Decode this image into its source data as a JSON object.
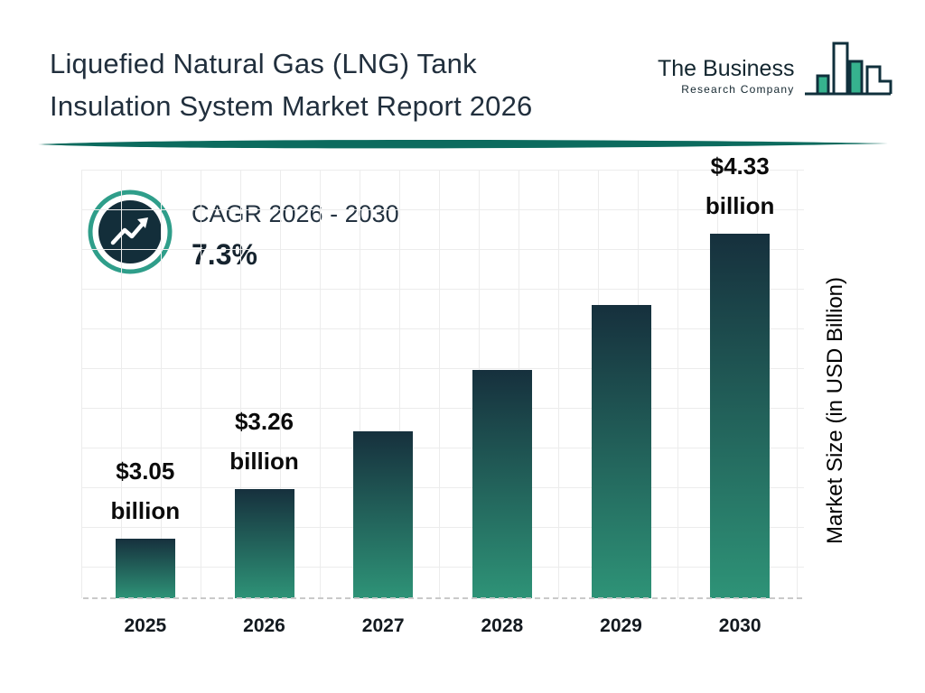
{
  "header": {
    "title_line1": "Liquefied Natural Gas (LNG) Tank",
    "title_line2": "Insulation System Market Report 2026",
    "logo": {
      "line1": "The Business",
      "line2": "Research Company"
    }
  },
  "cagr": {
    "label": "CAGR 2026 - 2030",
    "value": "7.3%"
  },
  "colors": {
    "accent_teal": "#2f9e8a",
    "dark_navy": "#132e3a",
    "divider_teal": "#0c6b5e",
    "bar_top": "#16303d",
    "bar_bottom": "#2e9377"
  },
  "chart_data": {
    "type": "bar",
    "title": "Liquefied Natural Gas (LNG) Tank Insulation System Market Report 2026",
    "categories": [
      "2025",
      "2026",
      "2027",
      "2028",
      "2029",
      "2030"
    ],
    "values": [
      3.05,
      3.26,
      3.5,
      3.76,
      4.03,
      4.33
    ],
    "value_labels": [
      [
        "$3.05",
        "billion"
      ],
      [
        "$3.26",
        "billion"
      ],
      null,
      null,
      null,
      [
        "$4.33",
        "billion"
      ]
    ],
    "xlabel": "",
    "ylabel": "Market Size (in USD Billion)",
    "ylim": [
      2.8,
      4.6
    ],
    "grid": true,
    "legend": false,
    "bar_gradient": [
      "#16303d",
      "#2e9377"
    ]
  }
}
